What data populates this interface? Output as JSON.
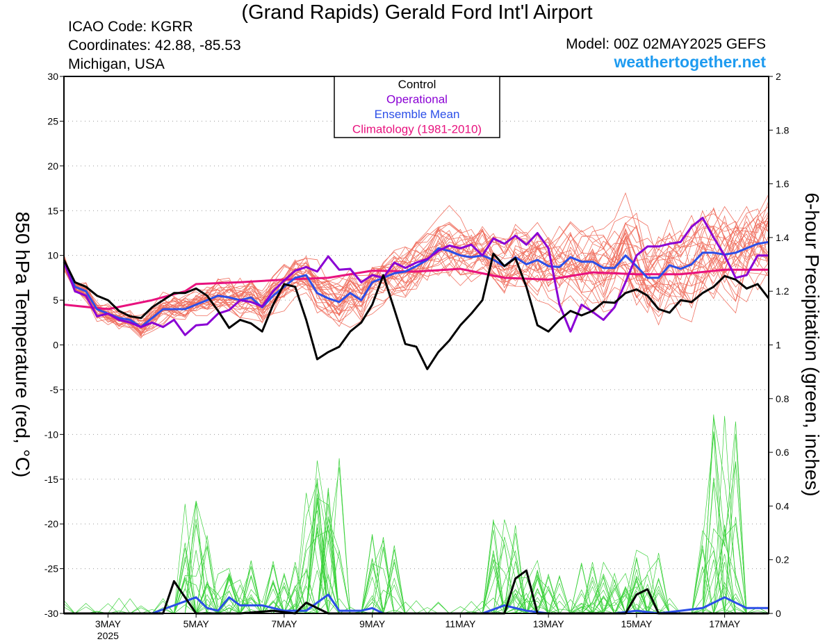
{
  "header": {
    "title": "(Grand Rapids) Gerald Ford Int'l Airport",
    "icao": "ICAO Code: KGRR",
    "coordinates": "Coordinates: 42.88, -85.53",
    "region": "Michigan, USA",
    "model": "Model: 00Z 02MAY2025 GEFS",
    "site": "weathertogether.net"
  },
  "chart_data": {
    "type": "line",
    "ylabel": "850 hPa Temperature (red, °C)",
    "y2label": "6-hour Precipitation (green, inches)",
    "ylim": [
      -30,
      30
    ],
    "y2lim": [
      0,
      2
    ],
    "yticks": [
      "30",
      "25",
      "20",
      "15",
      "10",
      "5",
      "0",
      "-5",
      "-10",
      "-15",
      "-20",
      "-25",
      "-30"
    ],
    "y2ticks": [
      "2",
      "1.8",
      "1.6",
      "1.4",
      "1.2",
      "1",
      "0.8",
      "0.6",
      "0.4",
      "0.2",
      "0"
    ],
    "x_unit": "days since 00Z 02MAY2025",
    "xlim": [
      0,
      16
    ],
    "xticks": [
      {
        "x": 1,
        "label": "3MAY",
        "sub": "2025"
      },
      {
        "x": 3,
        "label": "5MAY"
      },
      {
        "x": 5,
        "label": "7MAY"
      },
      {
        "x": 7,
        "label": "9MAY"
      },
      {
        "x": 9,
        "label": "11MAY"
      },
      {
        "x": 11,
        "label": "13MAY"
      },
      {
        "x": 13,
        "label": "15MAY"
      },
      {
        "x": 15,
        "label": "17MAY"
      }
    ],
    "legend": {
      "position": "top-center",
      "entries": [
        {
          "label": "Control",
          "color": "#000000"
        },
        {
          "label": "Operational",
          "color": "#8a00d4"
        },
        {
          "label": "Ensemble Mean",
          "color": "#2b4ee8"
        },
        {
          "label": "Climatology (1981-2010)",
          "color": "#e8127e"
        }
      ]
    },
    "colors": {
      "members_temp": "#f07060",
      "members_precip": "#3cd23c",
      "control": "#000000",
      "operational": "#8a00d4",
      "mean": "#2b4ee8",
      "climatology": "#e8127e"
    },
    "series": [
      {
        "name": "Control",
        "axis": "temperature",
        "points": [
          [
            0,
            9.5
          ],
          [
            0.25,
            7
          ],
          [
            0.5,
            6.5
          ],
          [
            0.75,
            5.5
          ],
          [
            1,
            5
          ],
          [
            1.25,
            3.8
          ],
          [
            1.5,
            3.2
          ],
          [
            1.75,
            3
          ],
          [
            2,
            4.2
          ],
          [
            2.25,
            5
          ],
          [
            2.5,
            5.8
          ],
          [
            2.75,
            5.8
          ],
          [
            3,
            6.3
          ],
          [
            3.25,
            5.5
          ],
          [
            3.5,
            3.8
          ],
          [
            3.75,
            1.9
          ],
          [
            4,
            2.8
          ],
          [
            4.25,
            2.4
          ],
          [
            4.5,
            1.5
          ],
          [
            4.75,
            4.5
          ],
          [
            5,
            6.8
          ],
          [
            5.25,
            6.5
          ],
          [
            5.5,
            2.8
          ],
          [
            5.75,
            -1.6
          ],
          [
            6,
            -0.8
          ],
          [
            6.25,
            -0.2
          ],
          [
            6.5,
            1.5
          ],
          [
            6.75,
            2.5
          ],
          [
            7,
            4.5
          ],
          [
            7.25,
            7.8
          ],
          [
            7.5,
            4
          ],
          [
            7.75,
            0.1
          ],
          [
            8,
            -0.2
          ],
          [
            8.25,
            -2.7
          ],
          [
            8.5,
            -0.8
          ],
          [
            8.75,
            0.5
          ],
          [
            9,
            2.2
          ],
          [
            9.25,
            3.5
          ],
          [
            9.5,
            5
          ],
          [
            9.75,
            10.2
          ],
          [
            10,
            8.8
          ],
          [
            10.25,
            9.7
          ],
          [
            10.5,
            6.5
          ],
          [
            10.75,
            2.2
          ],
          [
            11,
            1.5
          ],
          [
            11.25,
            2.8
          ],
          [
            11.5,
            3.8
          ],
          [
            11.75,
            3.3
          ],
          [
            12,
            3.8
          ],
          [
            12.25,
            4.8
          ],
          [
            12.5,
            4.7
          ],
          [
            12.75,
            5.8
          ],
          [
            13,
            6.2
          ],
          [
            13.25,
            5.5
          ],
          [
            13.5,
            4
          ],
          [
            13.75,
            3.6
          ],
          [
            14,
            5
          ],
          [
            14.25,
            4.8
          ],
          [
            14.5,
            5.8
          ],
          [
            14.75,
            6.5
          ],
          [
            15,
            7.7
          ],
          [
            15.25,
            7.3
          ],
          [
            15.5,
            6.3
          ],
          [
            15.75,
            6.8
          ],
          [
            16,
            5.2
          ]
        ]
      },
      {
        "name": "Operational",
        "axis": "temperature",
        "points": [
          [
            0,
            9.3
          ],
          [
            0.25,
            6
          ],
          [
            0.5,
            5.5
          ],
          [
            0.75,
            3.2
          ],
          [
            1,
            3.5
          ],
          [
            1.25,
            2.8
          ],
          [
            1.5,
            2.5
          ],
          [
            1.75,
            2
          ],
          [
            2,
            2.5
          ],
          [
            2.25,
            2
          ],
          [
            2.5,
            2.8
          ],
          [
            2.75,
            1.1
          ],
          [
            3,
            2.2
          ],
          [
            3.25,
            2.3
          ],
          [
            3.5,
            3.5
          ],
          [
            3.75,
            3.9
          ],
          [
            4,
            5
          ],
          [
            4.25,
            4.8
          ],
          [
            4.5,
            4.3
          ],
          [
            4.75,
            6
          ],
          [
            5,
            7.2
          ],
          [
            5.25,
            8.3
          ],
          [
            5.5,
            8.7
          ],
          [
            5.75,
            8.2
          ],
          [
            6,
            9.9
          ],
          [
            6.25,
            8.4
          ],
          [
            6.5,
            8.5
          ],
          [
            6.75,
            7
          ],
          [
            7,
            7.8
          ],
          [
            7.25,
            7.5
          ],
          [
            7.5,
            9.2
          ],
          [
            7.75,
            8.6
          ],
          [
            8,
            9.2
          ],
          [
            8.25,
            9.6
          ],
          [
            8.5,
            10.5
          ],
          [
            8.75,
            11.1
          ],
          [
            9,
            10.8
          ],
          [
            9.25,
            11.2
          ],
          [
            9.5,
            10
          ],
          [
            9.75,
            11.9
          ],
          [
            10,
            11.3
          ],
          [
            10.25,
            12.2
          ],
          [
            10.5,
            11.2
          ],
          [
            10.75,
            12.5
          ],
          [
            11,
            10.8
          ],
          [
            11.25,
            4.5
          ],
          [
            11.5,
            1.5
          ],
          [
            11.75,
            4.5
          ],
          [
            12,
            3.7
          ],
          [
            12.25,
            2.8
          ],
          [
            12.5,
            4.2
          ],
          [
            12.75,
            7
          ],
          [
            13,
            10
          ],
          [
            13.25,
            11
          ],
          [
            13.5,
            11
          ],
          [
            13.75,
            11.3
          ],
          [
            14,
            11.5
          ],
          [
            14.25,
            13.2
          ],
          [
            14.5,
            14.2
          ],
          [
            14.75,
            12
          ],
          [
            15,
            10
          ],
          [
            15.25,
            7.5
          ],
          [
            15.5,
            7.8
          ],
          [
            15.75,
            10
          ],
          [
            16,
            10
          ]
        ]
      },
      {
        "name": "Ensemble Mean",
        "axis": "temperature",
        "points": [
          [
            0,
            9.2
          ],
          [
            0.25,
            6.5
          ],
          [
            0.5,
            6
          ],
          [
            0.75,
            4
          ],
          [
            1,
            3.5
          ],
          [
            1.25,
            3
          ],
          [
            1.5,
            2.8
          ],
          [
            1.75,
            2
          ],
          [
            2,
            3
          ],
          [
            2.25,
            4
          ],
          [
            2.5,
            4
          ],
          [
            2.75,
            4
          ],
          [
            3,
            4.5
          ],
          [
            3.25,
            5
          ],
          [
            3.5,
            5.5
          ],
          [
            3.75,
            5.3
          ],
          [
            4,
            5
          ],
          [
            4.25,
            5.3
          ],
          [
            4.5,
            4.2
          ],
          [
            4.75,
            5.5
          ],
          [
            5,
            6.5
          ],
          [
            5.25,
            7.5
          ],
          [
            5.5,
            7.8
          ],
          [
            5.75,
            5.8
          ],
          [
            6,
            5.2
          ],
          [
            6.25,
            4.8
          ],
          [
            6.5,
            5.8
          ],
          [
            6.75,
            5
          ],
          [
            7,
            7
          ],
          [
            7.25,
            7.5
          ],
          [
            7.5,
            8
          ],
          [
            7.75,
            8.2
          ],
          [
            8,
            8.8
          ],
          [
            8.25,
            9.5
          ],
          [
            8.5,
            10.8
          ],
          [
            8.75,
            10.5
          ],
          [
            9,
            10
          ],
          [
            9.25,
            9.8
          ],
          [
            9.5,
            10
          ],
          [
            9.75,
            9.5
          ],
          [
            10,
            8.8
          ],
          [
            10.25,
            9.8
          ],
          [
            10.5,
            9
          ],
          [
            10.75,
            9.5
          ],
          [
            11,
            8.8
          ],
          [
            11.25,
            8.7
          ],
          [
            11.5,
            9.8
          ],
          [
            11.75,
            9.3
          ],
          [
            12,
            9.3
          ],
          [
            12.25,
            8.6
          ],
          [
            12.5,
            8.6
          ],
          [
            12.75,
            10
          ],
          [
            13,
            8.8
          ],
          [
            13.25,
            7.5
          ],
          [
            13.5,
            7.5
          ],
          [
            13.75,
            8.9
          ],
          [
            14,
            8.5
          ],
          [
            14.25,
            9
          ],
          [
            14.5,
            10.3
          ],
          [
            14.75,
            10.3
          ],
          [
            15,
            10.1
          ],
          [
            15.25,
            10.3
          ],
          [
            15.5,
            10.8
          ],
          [
            15.75,
            11.3
          ],
          [
            16,
            11.5
          ]
        ]
      },
      {
        "name": "Climatology (1981-2010)",
        "axis": "temperature",
        "points": [
          [
            0,
            4.5
          ],
          [
            1,
            4
          ],
          [
            2,
            5
          ],
          [
            2.75,
            6
          ],
          [
            3,
            6.8
          ],
          [
            4,
            7
          ],
          [
            5,
            7.3
          ],
          [
            6,
            7.5
          ],
          [
            7,
            8.3
          ],
          [
            8,
            8.2
          ],
          [
            9,
            8.5
          ],
          [
            10,
            7.5
          ],
          [
            11,
            7.3
          ],
          [
            12,
            8.1
          ],
          [
            13,
            7.9
          ],
          [
            14,
            7.9
          ],
          [
            15,
            8.4
          ],
          [
            16,
            8.4
          ]
        ]
      },
      {
        "name": "Control",
        "axis": "precipitation",
        "points": [
          [
            0,
            0
          ],
          [
            2.25,
            0
          ],
          [
            2.5,
            0.12
          ],
          [
            3,
            0
          ],
          [
            4,
            0
          ],
          [
            4.75,
            0.01
          ],
          [
            5.25,
            0
          ],
          [
            5.5,
            0.04
          ],
          [
            6,
            0
          ],
          [
            9,
            0
          ],
          [
            10,
            0
          ],
          [
            10.25,
            0.13
          ],
          [
            10.5,
            0.16
          ],
          [
            10.75,
            0
          ],
          [
            12.75,
            0
          ],
          [
            13,
            0.07
          ],
          [
            13.25,
            0.09
          ],
          [
            13.5,
            0
          ],
          [
            16,
            0
          ]
        ]
      },
      {
        "name": "Ensemble Mean",
        "axis": "precipitation",
        "points": [
          [
            0,
            0
          ],
          [
            2,
            0
          ],
          [
            2.5,
            0.03
          ],
          [
            3,
            0.06
          ],
          [
            3.25,
            0.02
          ],
          [
            3.5,
            0.01
          ],
          [
            3.75,
            0.06
          ],
          [
            4,
            0.03
          ],
          [
            4.5,
            0.03
          ],
          [
            5,
            0.01
          ],
          [
            5.5,
            0.01
          ],
          [
            5.75,
            0.04
          ],
          [
            6,
            0.07
          ],
          [
            6.25,
            0.01
          ],
          [
            6.75,
            0.01
          ],
          [
            7,
            0.02
          ],
          [
            7.25,
            0
          ],
          [
            9,
            0
          ],
          [
            9.5,
            0
          ],
          [
            10,
            0.03
          ],
          [
            10.5,
            0.01
          ],
          [
            11,
            0
          ],
          [
            12.5,
            0
          ],
          [
            13,
            0.01
          ],
          [
            13.5,
            0
          ],
          [
            14,
            0.01
          ],
          [
            14.5,
            0.02
          ],
          [
            15,
            0.06
          ],
          [
            15.5,
            0.02
          ],
          [
            16,
            0.02
          ]
        ]
      }
    ]
  }
}
